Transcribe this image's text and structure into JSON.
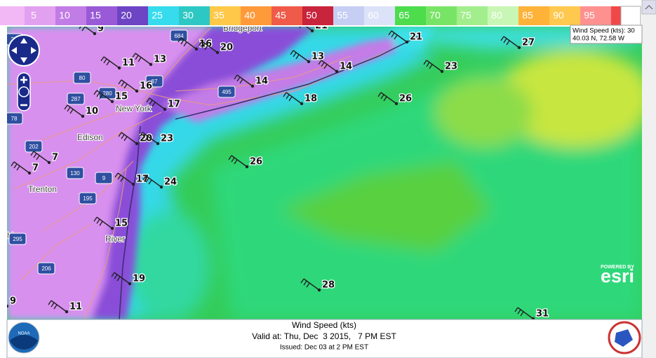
{
  "legend": {
    "values": [
      5,
      10,
      15,
      20,
      25,
      30,
      35,
      40,
      45,
      50,
      55,
      60,
      65,
      70,
      75,
      80,
      85,
      90,
      95
    ],
    "colors": [
      "#f2b8f6",
      "#e2a0f0",
      "#c27ce6",
      "#9a5ad8",
      "#6c44c4",
      "#36dcee",
      "#2ec8c4",
      "#ffc848",
      "#ff9a3a",
      "#f05a48",
      "#c8243c",
      "#c6cef4",
      "#dce2f8",
      "#4cdc4c",
      "#78e466",
      "#a2ee8c",
      "#c8f6b4",
      "#ffb238",
      "#ffc84e",
      "#ff9090"
    ]
  },
  "info": {
    "line1": "Wind Speed (kts): 30",
    "line2": "40.03 N, 72.58 W"
  },
  "stations": [
    9,
    21,
    16,
    20,
    21,
    27,
    11,
    13,
    13,
    14,
    23,
    16,
    14,
    15,
    17,
    18,
    26,
    10,
    20,
    23,
    7,
    26,
    7,
    17,
    24,
    15,
    19,
    28,
    9,
    11,
    31
  ],
  "places": [
    "Bridgeport",
    "Edison",
    "New York",
    "Trenton",
    "River",
    "hia"
  ],
  "shields": [
    "684",
    "80",
    "87",
    "287",
    "280",
    "495",
    "78",
    "202",
    "130",
    "9",
    "195",
    "206",
    "20",
    "295"
  ],
  "branding": {
    "powered": "POWERED BY",
    "esri": "esri"
  },
  "footer": {
    "title": "Wind Speed (kts)",
    "valid": "Valid at: Thu, Dec  3 2015,   7 PM EST",
    "issued": "Issued: Dec 03 at 2 PM EST",
    "noaa": "NOAA"
  }
}
